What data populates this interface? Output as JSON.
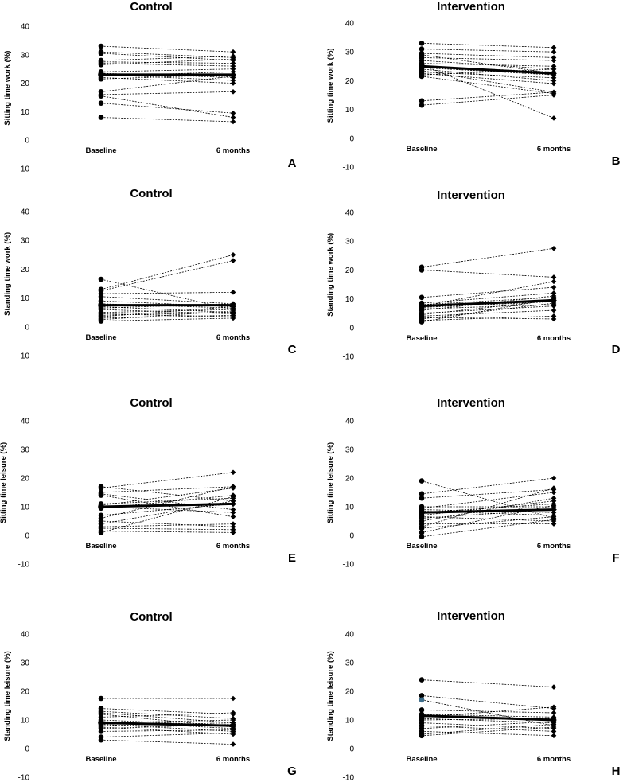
{
  "chart_data": [
    {
      "type": "line",
      "panel": "A",
      "title": "Control",
      "ylabel": "Sitting time work (%)",
      "categories": [
        "Baseline",
        "6 months"
      ],
      "yticks": [
        -10,
        0,
        10,
        20,
        30,
        40
      ],
      "ylim": [
        -10,
        40
      ],
      "mean": [
        23,
        23
      ],
      "series": [
        {
          "values": [
            33,
            31
          ]
        },
        {
          "values": [
            31,
            29
          ]
        },
        {
          "values": [
            30.5,
            28
          ]
        },
        {
          "values": [
            28,
            29.5
          ]
        },
        {
          "values": [
            27.5,
            27
          ]
        },
        {
          "values": [
            27,
            26
          ]
        },
        {
          "values": [
            26.5,
            28.5
          ]
        },
        {
          "values": [
            24,
            25
          ]
        },
        {
          "values": [
            23.5,
            22
          ]
        },
        {
          "values": [
            23,
            21
          ]
        },
        {
          "values": [
            22.5,
            24
          ]
        },
        {
          "values": [
            22,
            20
          ]
        },
        {
          "values": [
            21.5,
            23
          ]
        },
        {
          "values": [
            17,
            22.5
          ]
        },
        {
          "values": [
            16,
            17
          ]
        },
        {
          "values": [
            13,
            9.5
          ]
        },
        {
          "values": [
            8,
            6.5
          ]
        },
        {
          "values": [
            15.5,
            8
          ]
        }
      ]
    },
    {
      "type": "line",
      "panel": "B",
      "title": "Intervention",
      "ylabel": "Sitting time work (%)",
      "categories": [
        "Baseline",
        "6 months"
      ],
      "yticks": [
        -10,
        0,
        10,
        20,
        30,
        40
      ],
      "ylim": [
        -10,
        40
      ],
      "mean": [
        25,
        22.5
      ],
      "series": [
        {
          "values": [
            33,
            31.5
          ]
        },
        {
          "values": [
            31,
            30
          ]
        },
        {
          "values": [
            29.5,
            28
          ]
        },
        {
          "values": [
            28,
            27
          ]
        },
        {
          "values": [
            27,
            24
          ]
        },
        {
          "values": [
            26,
            25
          ]
        },
        {
          "values": [
            25,
            23
          ]
        },
        {
          "values": [
            24.5,
            22
          ]
        },
        {
          "values": [
            24,
            20
          ]
        },
        {
          "values": [
            23.5,
            16
          ]
        },
        {
          "values": [
            23,
            21
          ]
        },
        {
          "values": [
            22.5,
            19
          ]
        },
        {
          "values": [
            22,
            24
          ]
        },
        {
          "values": [
            21.5,
            15.5
          ]
        },
        {
          "values": [
            13,
            16
          ]
        },
        {
          "values": [
            11.5,
            15
          ]
        },
        {
          "values": [
            25.5,
            7
          ]
        },
        {
          "values": [
            29,
            22.5
          ]
        }
      ]
    },
    {
      "type": "line",
      "panel": "C",
      "title": "Control",
      "ylabel": "Standing time work (%)",
      "categories": [
        "Baseline",
        "6 months"
      ],
      "yticks": [
        -10,
        0,
        10,
        20,
        30,
        40
      ],
      "ylim": [
        -10,
        40
      ],
      "mean": [
        7.5,
        7.5
      ],
      "series": [
        {
          "values": [
            16.5,
            6
          ]
        },
        {
          "values": [
            13,
            25
          ]
        },
        {
          "values": [
            12.5,
            23
          ]
        },
        {
          "values": [
            11.5,
            12
          ]
        },
        {
          "values": [
            10.5,
            8
          ]
        },
        {
          "values": [
            9,
            7
          ]
        },
        {
          "values": [
            8,
            6.5
          ]
        },
        {
          "values": [
            7,
            5
          ]
        },
        {
          "values": [
            6.5,
            8
          ]
        },
        {
          "values": [
            6,
            4.5
          ]
        },
        {
          "values": [
            5,
            6
          ]
        },
        {
          "values": [
            4.5,
            3.5
          ]
        },
        {
          "values": [
            4,
            5
          ]
        },
        {
          "values": [
            3.5,
            7
          ]
        },
        {
          "values": [
            3,
            4
          ]
        },
        {
          "values": [
            2.5,
            5.5
          ]
        },
        {
          "values": [
            2,
            3
          ]
        }
      ]
    },
    {
      "type": "line",
      "panel": "D",
      "title": "Intervention",
      "ylabel": "Standing time work (%)",
      "categories": [
        "Baseline",
        "6 months"
      ],
      "yticks": [
        -10,
        0,
        10,
        20,
        30,
        40
      ],
      "ylim": [
        -10,
        40
      ],
      "mean": [
        7.5,
        9.5
      ],
      "series": [
        {
          "values": [
            21,
            27.5
          ]
        },
        {
          "values": [
            20,
            17.5
          ]
        },
        {
          "values": [
            10.5,
            14
          ]
        },
        {
          "values": [
            8.5,
            12
          ]
        },
        {
          "values": [
            8,
            10.5
          ]
        },
        {
          "values": [
            7.5,
            16
          ]
        },
        {
          "values": [
            7,
            9
          ]
        },
        {
          "values": [
            6.5,
            8
          ]
        },
        {
          "values": [
            6,
            11
          ]
        },
        {
          "values": [
            5,
            7.5
          ]
        },
        {
          "values": [
            4.5,
            9.5
          ]
        },
        {
          "values": [
            4,
            6
          ]
        },
        {
          "values": [
            3.5,
            3
          ]
        },
        {
          "values": [
            3,
            8.5
          ]
        },
        {
          "values": [
            2.5,
            4
          ]
        },
        {
          "values": [
            2,
            10
          ]
        }
      ]
    },
    {
      "type": "line",
      "panel": "E",
      "title": "Control",
      "ylabel": "Sitting time leisure (%)",
      "categories": [
        "Baseline",
        "6 months"
      ],
      "yticks": [
        -10,
        0,
        10,
        20,
        30,
        40
      ],
      "ylim": [
        -10,
        40
      ],
      "mean": [
        10,
        11
      ],
      "series": [
        {
          "values": [
            17,
            12
          ]
        },
        {
          "values": [
            16.5,
            22
          ]
        },
        {
          "values": [
            15,
            17
          ]
        },
        {
          "values": [
            14.5,
            9
          ]
        },
        {
          "values": [
            14,
            6.5
          ]
        },
        {
          "values": [
            11,
            13
          ]
        },
        {
          "values": [
            10.5,
            16.5
          ]
        },
        {
          "values": [
            10,
            8
          ]
        },
        {
          "values": [
            9.5,
            14
          ]
        },
        {
          "values": [
            7,
            11
          ]
        },
        {
          "values": [
            6,
            17
          ]
        },
        {
          "values": [
            5,
            3
          ]
        },
        {
          "values": [
            4,
            12
          ]
        },
        {
          "values": [
            3,
            4
          ]
        },
        {
          "values": [
            2.5,
            2
          ]
        },
        {
          "values": [
            1.5,
            1
          ]
        },
        {
          "values": [
            1,
            13.5
          ]
        }
      ]
    },
    {
      "type": "line",
      "panel": "F",
      "title": "Intervention",
      "ylabel": "Sitting time leisure (%)",
      "categories": [
        "Baseline",
        "6 months"
      ],
      "yticks": [
        -10,
        0,
        10,
        20,
        30,
        40
      ],
      "ylim": [
        -10,
        40
      ],
      "mean": [
        8,
        9
      ],
      "series": [
        {
          "values": [
            19,
            6
          ]
        },
        {
          "values": [
            14.5,
            20
          ]
        },
        {
          "values": [
            13,
            16
          ]
        },
        {
          "values": [
            10,
            10
          ]
        },
        {
          "values": [
            9.5,
            15
          ]
        },
        {
          "values": [
            9,
            8
          ]
        },
        {
          "values": [
            8.5,
            7
          ]
        },
        {
          "values": [
            8,
            11
          ]
        },
        {
          "values": [
            7,
            12
          ]
        },
        {
          "values": [
            6.5,
            5
          ]
        },
        {
          "values": [
            6,
            9
          ]
        },
        {
          "values": [
            5,
            13
          ]
        },
        {
          "values": [
            4,
            4
          ]
        },
        {
          "values": [
            3,
            16.5
          ]
        },
        {
          "values": [
            2.5,
            6.5
          ]
        },
        {
          "values": [
            1,
            10.5
          ]
        },
        {
          "values": [
            -0.5,
            5.5
          ]
        }
      ]
    },
    {
      "type": "line",
      "panel": "G",
      "title": "Control",
      "ylabel": "Standing time leisure (%)",
      "categories": [
        "Baseline",
        "6 months"
      ],
      "yticks": [
        -10,
        0,
        10,
        20,
        30,
        40
      ],
      "ylim": [
        -10,
        40
      ],
      "mean": [
        9,
        8
      ],
      "series": [
        {
          "values": [
            17.5,
            17.5
          ]
        },
        {
          "values": [
            14,
            12
          ]
        },
        {
          "values": [
            13,
            10.5
          ]
        },
        {
          "values": [
            12.5,
            9
          ]
        },
        {
          "values": [
            11,
            12.5
          ]
        },
        {
          "values": [
            10,
            8
          ]
        },
        {
          "values": [
            9.5,
            7
          ]
        },
        {
          "values": [
            9,
            10
          ]
        },
        {
          "values": [
            8.5,
            6
          ]
        },
        {
          "values": [
            8,
            9
          ]
        },
        {
          "values": [
            7.5,
            5
          ]
        },
        {
          "values": [
            7,
            8.5
          ]
        },
        {
          "values": [
            6,
            6.5
          ]
        },
        {
          "values": [
            4,
            5.5
          ]
        },
        {
          "values": [
            3,
            1.5
          ]
        },
        {
          "values": [
            12,
            7.5
          ]
        }
      ]
    },
    {
      "type": "line",
      "panel": "H",
      "title": "Intervention",
      "ylabel": "Standing time leisure (%)",
      "categories": [
        "Baseline",
        "6 months"
      ],
      "yticks": [
        -10,
        0,
        10,
        20,
        30,
        40
      ],
      "ylim": [
        -10,
        40
      ],
      "mean": [
        11.5,
        10
      ],
      "series": [
        {
          "values": [
            24,
            21.5
          ]
        },
        {
          "values": [
            18.5,
            14
          ]
        },
        {
          "values": [
            17,
            8
          ]
        },
        {
          "values": [
            13.5,
            12.5
          ]
        },
        {
          "values": [
            12,
            11
          ]
        },
        {
          "values": [
            11,
            14.5
          ]
        },
        {
          "values": [
            10.5,
            9
          ]
        },
        {
          "values": [
            10,
            10.5
          ]
        },
        {
          "values": [
            9,
            7
          ]
        },
        {
          "values": [
            8,
            6
          ]
        },
        {
          "values": [
            7,
            9.5
          ]
        },
        {
          "values": [
            6,
            4.5
          ]
        },
        {
          "values": [
            5,
            8.5
          ]
        },
        {
          "values": [
            4.5,
            7.5
          ]
        }
      ],
      "highlight_color": "#3d6e8c"
    }
  ]
}
